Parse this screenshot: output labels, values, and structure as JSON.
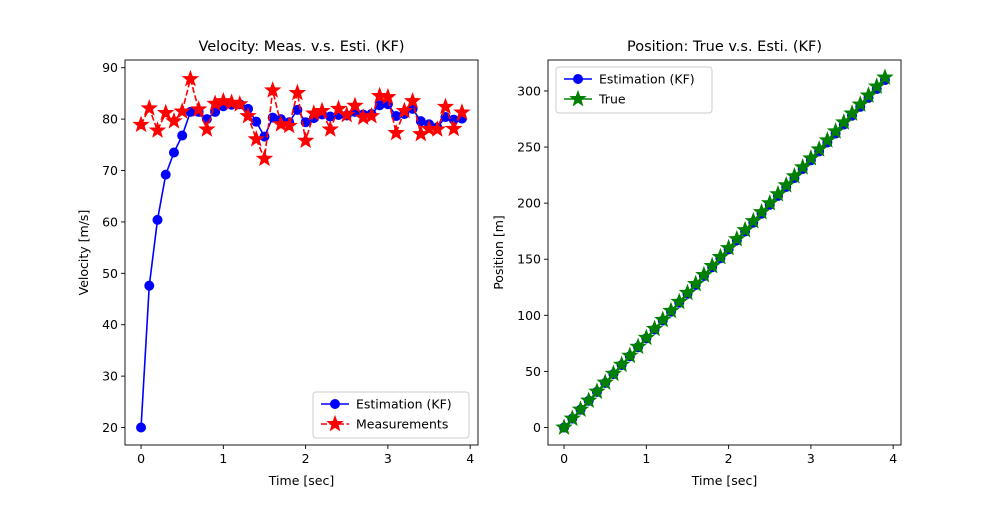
{
  "chart_data": [
    {
      "type": "line",
      "title": "Velocity: Meas. v.s. Esti. (KF)",
      "xlabel": "Time [sec]",
      "ylabel": "Velocity [m/s]",
      "xlim": [
        -0.195,
        4.095
      ],
      "ylim": [
        16.6,
        91.5
      ],
      "xticks": [
        "0",
        "1",
        "2",
        "3",
        "4"
      ],
      "yticks": [
        "20",
        "30",
        "40",
        "50",
        "60",
        "70",
        "80",
        "90"
      ],
      "grid": false,
      "legend_position": "lower-right",
      "x": [
        0,
        0.1,
        0.2,
        0.3,
        0.4,
        0.5,
        0.6,
        0.7,
        0.8,
        0.9,
        1.0,
        1.1,
        1.2,
        1.3,
        1.4,
        1.5,
        1.6,
        1.7,
        1.8,
        1.9,
        2.0,
        2.1,
        2.2,
        2.3,
        2.4,
        2.5,
        2.6,
        2.7,
        2.8,
        2.9,
        3.0,
        3.1,
        3.2,
        3.3,
        3.4,
        3.5,
        3.6,
        3.7,
        3.8,
        3.9
      ],
      "series": [
        {
          "name": "Estimation (KF)",
          "color": "#0000ff",
          "marker": "circle",
          "linestyle": "solid",
          "values": [
            20.0,
            47.6,
            60.4,
            69.2,
            73.5,
            76.8,
            81.4,
            81.4,
            80.0,
            81.4,
            82.5,
            82.8,
            82.9,
            82.0,
            79.5,
            76.6,
            80.3,
            80.0,
            79.4,
            81.8,
            79.4,
            80.2,
            80.9,
            80.5,
            80.8,
            80.7,
            81.4,
            80.9,
            81.0,
            82.7,
            82.9,
            80.6,
            81.0,
            82.0,
            79.6,
            79.0,
            78.4,
            80.4,
            79.9,
            80.1
          ]
        },
        {
          "name": "Measurements",
          "color": "#ff0000",
          "marker": "star",
          "linestyle": "dashed",
          "values": [
            78.9,
            82.1,
            77.8,
            81.2,
            79.6,
            81.5,
            87.8,
            81.9,
            78.0,
            83.0,
            83.5,
            83.2,
            82.9,
            80.6,
            76.1,
            72.3,
            85.6,
            79.0,
            78.7,
            85.1,
            75.8,
            81.1,
            81.6,
            78.0,
            82.0,
            80.8,
            82.6,
            80.3,
            80.6,
            84.5,
            84.3,
            77.3,
            81.6,
            83.5,
            77.1,
            78.1,
            78.0,
            82.4,
            78.1,
            81.3
          ]
        }
      ]
    },
    {
      "type": "line",
      "title": "Position: True v.s. Esti. (KF)",
      "xlabel": "Time [sec]",
      "ylabel": "Position [m]",
      "xlim": [
        -0.195,
        4.095
      ],
      "ylim": [
        -15.6,
        327.6
      ],
      "xticks": [
        "0",
        "1",
        "2",
        "3",
        "4"
      ],
      "yticks": [
        "0",
        "50",
        "100",
        "150",
        "200",
        "250",
        "300"
      ],
      "grid": false,
      "legend_position": "upper-left",
      "x": [
        0,
        0.1,
        0.2,
        0.3,
        0.4,
        0.5,
        0.6,
        0.7,
        0.8,
        0.9,
        1.0,
        1.1,
        1.2,
        1.3,
        1.4,
        1.5,
        1.6,
        1.7,
        1.8,
        1.9,
        2.0,
        2.1,
        2.2,
        2.3,
        2.4,
        2.5,
        2.6,
        2.7,
        2.8,
        2.9,
        3.0,
        3.1,
        3.2,
        3.3,
        3.4,
        3.5,
        3.6,
        3.7,
        3.8,
        3.9
      ],
      "series": [
        {
          "name": "Estimation (KF)",
          "color": "#0000ff",
          "marker": "circle",
          "linestyle": "solid",
          "values": [
            0,
            7.9,
            15.9,
            23.8,
            31.8,
            39.7,
            47.6,
            55.6,
            63.5,
            71.5,
            79.4,
            87.3,
            95.3,
            103.2,
            111.2,
            119.1,
            127.0,
            135.0,
            142.9,
            150.9,
            158.8,
            166.7,
            174.7,
            182.6,
            190.6,
            198.5,
            206.4,
            214.4,
            222.3,
            230.3,
            238.2,
            246.1,
            254.1,
            262.0,
            270.0,
            277.9,
            285.8,
            293.8,
            301.7,
            309.7
          ]
        },
        {
          "name": "True",
          "color": "#008000",
          "marker": "star",
          "linestyle": "solid",
          "values": [
            0,
            8.0,
            16.0,
            24.0,
            32.0,
            40.0,
            48.0,
            56.0,
            64.0,
            72.0,
            80.0,
            88.0,
            96.0,
            104.0,
            112.0,
            120.0,
            128.0,
            136.0,
            144.0,
            152.0,
            160.0,
            168.0,
            176.0,
            184.0,
            192.0,
            200.0,
            208.0,
            216.0,
            224.0,
            232.0,
            240.0,
            248.0,
            256.0,
            264.0,
            272.0,
            280.0,
            288.0,
            296.0,
            304.0,
            312.0
          ]
        }
      ]
    }
  ]
}
